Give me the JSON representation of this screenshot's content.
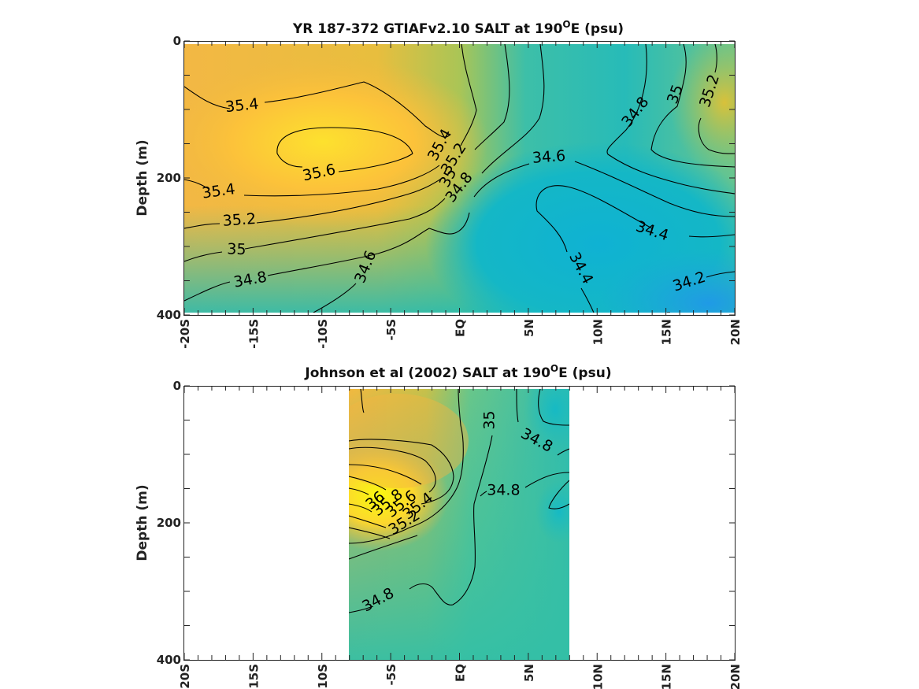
{
  "chart_data": [
    {
      "type": "heatmap",
      "title_main": "YR 187-372 GTIAFv2.10 SALT at 190",
      "title_sup": "O",
      "title_tail": "E (psu)",
      "ylabel": "Depth (m)",
      "xlim": [
        -20,
        20
      ],
      "ylim": [
        0,
        400
      ],
      "y_reversed": true,
      "xticklabels": [
        "-20S",
        "-15S",
        "-10S",
        "-5S",
        "EQ",
        "5N",
        "10N",
        "15N",
        "20N"
      ],
      "yticklabels": [
        "0",
        "200",
        "400"
      ],
      "colormap": "parula",
      "color_range_psu": [
        34.1,
        36.1
      ],
      "field_samples": [
        {
          "lat": -15,
          "depth": 150,
          "salt": 35.5
        },
        {
          "lat": -8,
          "depth": 160,
          "salt": 35.65
        },
        {
          "lat": 2,
          "depth": 30,
          "salt": 35.0
        },
        {
          "lat": 5,
          "depth": 300,
          "salt": 34.45
        },
        {
          "lat": 18,
          "depth": 380,
          "salt": 34.15
        }
      ],
      "contour_labels": [
        {
          "text": "35.4",
          "lat": -15.8,
          "depth": 95
        },
        {
          "text": "35.6",
          "lat": -10.2,
          "depth": 193
        },
        {
          "text": "35.4",
          "lat": -17.5,
          "depth": 220
        },
        {
          "text": "35.2",
          "lat": -16.0,
          "depth": 262
        },
        {
          "text": "35",
          "lat": -16.2,
          "depth": 305
        },
        {
          "text": "34.8",
          "lat": -15.2,
          "depth": 349
        },
        {
          "text": "34.6",
          "lat": -6.8,
          "depth": 330
        },
        {
          "text": "35.4",
          "lat": -1.4,
          "depth": 152
        },
        {
          "text": "35.2",
          "lat": -0.4,
          "depth": 172
        },
        {
          "text": "35",
          "lat": -0.8,
          "depth": 200
        },
        {
          "text": "34.8",
          "lat": 0.0,
          "depth": 214
        },
        {
          "text": "34.6",
          "lat": 6.5,
          "depth": 170
        },
        {
          "text": "34.4",
          "lat": 14.0,
          "depth": 278
        },
        {
          "text": "34.4",
          "lat": 8.8,
          "depth": 332
        },
        {
          "text": "34.2",
          "lat": 16.7,
          "depth": 352
        },
        {
          "text": "34.8",
          "lat": 12.8,
          "depth": 104
        },
        {
          "text": "35",
          "lat": 15.7,
          "depth": 78
        },
        {
          "text": "35.2",
          "lat": 18.2,
          "depth": 73
        }
      ]
    },
    {
      "type": "heatmap",
      "title_main": "Johnson et al (2002) SALT at 190",
      "title_sup": "O",
      "title_tail": "E (psu)",
      "ylabel": "Depth (m)",
      "xlim": [
        -20,
        20
      ],
      "ylim": [
        0,
        400
      ],
      "y_reversed": true,
      "data_lat_range": [
        -8,
        8
      ],
      "xticklabels": [
        "-20S",
        "-15S",
        "-10S",
        "-5S",
        "EQ",
        "5N",
        "10N",
        "15N",
        "20N"
      ],
      "yticklabels": [
        "0",
        "200",
        "400"
      ],
      "colormap": "parula",
      "color_range_psu": [
        34.1,
        36.1
      ],
      "field_samples": [
        {
          "lat": -7,
          "depth": 170,
          "salt": 36.1
        },
        {
          "lat": -3,
          "depth": 130,
          "salt": 35.5
        },
        {
          "lat": 3,
          "depth": 250,
          "salt": 34.85
        },
        {
          "lat": 7,
          "depth": 30,
          "salt": 34.6
        }
      ],
      "contour_labels": [
        {
          "text": "35",
          "lat": 2.2,
          "depth": 50
        },
        {
          "text": "34.8",
          "lat": 5.6,
          "depth": 80
        },
        {
          "text": "34.8",
          "lat": 3.2,
          "depth": 153
        },
        {
          "text": "36",
          "lat": -6.1,
          "depth": 168
        },
        {
          "text": "35.8",
          "lat": -5.2,
          "depth": 171
        },
        {
          "text": "35.6",
          "lat": -4.2,
          "depth": 173
        },
        {
          "text": "35.4",
          "lat": -3.0,
          "depth": 176
        },
        {
          "text": "35.2",
          "lat": -4.0,
          "depth": 200
        },
        {
          "text": "34.8",
          "lat": -5.9,
          "depth": 313
        }
      ]
    }
  ]
}
